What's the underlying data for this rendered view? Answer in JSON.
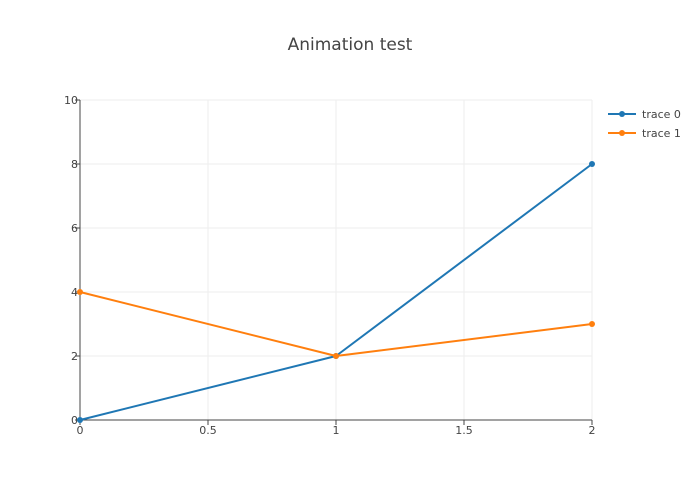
{
  "chart_data": {
    "type": "line",
    "title": "Animation test",
    "xlabel": "",
    "ylabel": "",
    "xlim": [
      0,
      2
    ],
    "ylim": [
      0,
      10
    ],
    "x_ticks": [
      0,
      0.5,
      1,
      1.5,
      2
    ],
    "x_tick_labels": [
      "0",
      "0.5",
      "1",
      "1.5",
      "2"
    ],
    "y_ticks": [
      0,
      2,
      4,
      6,
      8,
      10
    ],
    "y_tick_labels": [
      "0",
      "2",
      "4",
      "6",
      "8",
      "10"
    ],
    "grid": true,
    "legend_position": "top-right",
    "series": [
      {
        "name": "trace 0",
        "color": "#1f77b4",
        "x": [
          0,
          1,
          2
        ],
        "y": [
          0,
          2,
          8
        ]
      },
      {
        "name": "trace 1",
        "color": "#ff7f0e",
        "x": [
          0,
          1,
          2
        ],
        "y": [
          4,
          2,
          3
        ]
      }
    ]
  }
}
